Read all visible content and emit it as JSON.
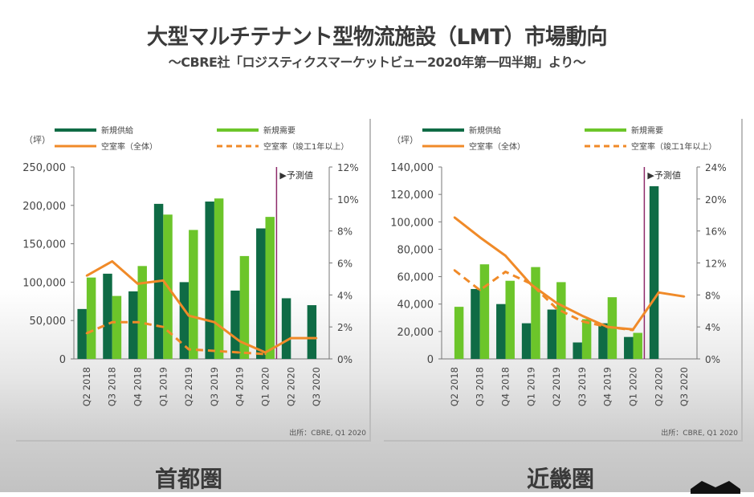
{
  "header": {
    "title": "大型マルチテナント型物流施設（LMT）市場動向",
    "subtitle": "～CBRE社「ロジスティクスマーケットビュー2020年第一四半期」より～"
  },
  "colors": {
    "supply": "#0f6b45",
    "demand": "#6cc52a",
    "vacancy": "#f08a28",
    "forecast_line": "#8e2a6a"
  },
  "regions": [
    {
      "label": "首都圏"
    },
    {
      "label": "近畿圏"
    }
  ],
  "nav": {
    "scroll_down_icon": "chevron-down-icon"
  },
  "chart_data": [
    {
      "type": "bar",
      "region": "首都圏",
      "unit_label": "（坪）",
      "legend": {
        "supply": "新規供給",
        "demand": "新規需要",
        "vacancy_all": "空室率（全体）",
        "vacancy_1yr": "空室率（竣工1年以上）"
      },
      "legend_position": "top",
      "forecast_label": "▶予測値",
      "forecast_from_index": 8,
      "source": "出所：CBRE, Q1 2020",
      "categories": [
        "Q2 2018",
        "Q3 2018",
        "Q4 2018",
        "Q1 2019",
        "Q2 2019",
        "Q3 2019",
        "Q4 2019",
        "Q1 2020",
        "Q2 2020",
        "Q3 2020"
      ],
      "y_left": {
        "min": 0,
        "max": 250000,
        "ticks": [
          "0",
          "50,000",
          "100,000",
          "150,000",
          "200,000",
          "250,000"
        ],
        "tick_values": [
          0,
          50000,
          100000,
          150000,
          200000,
          250000
        ]
      },
      "y_right": {
        "min": 0,
        "max": 12,
        "ticks": [
          "0%",
          "2%",
          "4%",
          "6%",
          "8%",
          "10%",
          "12%"
        ],
        "tick_values": [
          0,
          2,
          4,
          6,
          8,
          10,
          12
        ]
      },
      "series": [
        {
          "name": "新規供給",
          "kind": "bar",
          "axis": "left",
          "values": [
            65000,
            111000,
            88000,
            202000,
            100000,
            205000,
            89000,
            170000,
            79000,
            70000
          ]
        },
        {
          "name": "新規需要",
          "kind": "bar",
          "axis": "left",
          "values": [
            106000,
            82000,
            121000,
            188000,
            168000,
            209000,
            134000,
            185000,
            null,
            null
          ]
        },
        {
          "name": "空室率（全体）",
          "kind": "line",
          "axis": "right",
          "values": [
            5.2,
            6.1,
            4.7,
            4.9,
            2.7,
            2.3,
            1.1,
            0.4,
            1.3,
            1.3
          ]
        },
        {
          "name": "空室率（竣工1年以上）",
          "kind": "dashed-line",
          "axis": "right",
          "values": [
            1.6,
            2.3,
            2.3,
            2.0,
            0.6,
            0.5,
            0.4,
            0.3,
            null,
            null
          ]
        }
      ]
    },
    {
      "type": "bar",
      "region": "近畿圏",
      "unit_label": "（坪）",
      "legend": {
        "supply": "新規供給",
        "demand": "新規需要",
        "vacancy_all": "空室率（全体）",
        "vacancy_1yr": "空室率（竣工1年以上）"
      },
      "legend_position": "top",
      "forecast_label": "▶予測値",
      "forecast_from_index": 8,
      "source": "出所：CBRE, Q1 2020",
      "categories": [
        "Q2 2018",
        "Q3 2018",
        "Q4 2018",
        "Q1 2019",
        "Q2 2019",
        "Q3 2019",
        "Q4 2019",
        "Q1 2020",
        "Q2 2020",
        "Q3 2020"
      ],
      "y_left": {
        "min": 0,
        "max": 140000,
        "ticks": [
          "0",
          "20,000",
          "40,000",
          "60,000",
          "80,000",
          "100,000",
          "120,000",
          "140,000"
        ],
        "tick_values": [
          0,
          20000,
          40000,
          60000,
          80000,
          100000,
          120000,
          140000
        ]
      },
      "y_right": {
        "min": 0,
        "max": 24,
        "ticks": [
          "0%",
          "4%",
          "8%",
          "12%",
          "16%",
          "20%",
          "24%"
        ],
        "tick_values": [
          0,
          4,
          8,
          12,
          16,
          20,
          24
        ]
      },
      "series": [
        {
          "name": "新規供給",
          "kind": "bar",
          "axis": "left",
          "values": [
            0,
            51000,
            40000,
            26000,
            36000,
            12000,
            26000,
            16000,
            126000,
            0
          ]
        },
        {
          "name": "新規需要",
          "kind": "bar",
          "axis": "left",
          "values": [
            38000,
            69000,
            57000,
            67000,
            56000,
            29000,
            45000,
            19000,
            null,
            null
          ]
        },
        {
          "name": "空室率（全体）",
          "kind": "line",
          "axis": "right",
          "values": [
            17.7,
            15.2,
            12.9,
            9.3,
            7.0,
            5.4,
            4.0,
            3.7,
            8.3,
            7.8
          ]
        },
        {
          "name": "空室率（竣工1年以上）",
          "kind": "dashed-line",
          "axis": "right",
          "values": [
            11.1,
            8.6,
            10.9,
            9.4,
            6.3,
            4.7,
            4.0,
            3.6,
            null,
            null
          ]
        }
      ]
    }
  ]
}
